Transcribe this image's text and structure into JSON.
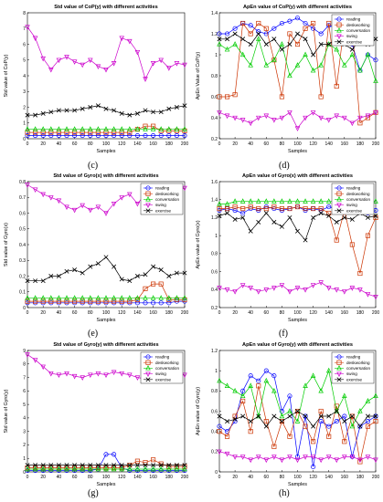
{
  "figure": {
    "panel_tags": [
      "(c)",
      "(d)",
      "(e)",
      "(f)",
      "(g)",
      "(h)"
    ]
  },
  "series_style": [
    {
      "name": "reading",
      "color": "#0000ff",
      "marker": "circle"
    },
    {
      "name": "deskworking",
      "color": "#cc3300",
      "marker": "square"
    },
    {
      "name": "conversation",
      "color": "#00cc00",
      "marker": "triangle-up"
    },
    {
      "name": "swing",
      "color": "#cc00cc",
      "marker": "triangle-down"
    },
    {
      "name": "exercise",
      "color": "#000000",
      "marker": "x"
    }
  ],
  "chart_data": [
    {
      "type": "line",
      "panel": "c",
      "title": "Std value of CoP(y) with different activities",
      "xlabel": "Samples",
      "ylabel": "Std value of CoP(y)",
      "xlim": [
        0,
        200
      ],
      "ylim": [
        0,
        8
      ],
      "xticks": [
        0,
        20,
        40,
        60,
        80,
        100,
        120,
        140,
        160,
        180,
        200
      ],
      "yticks": [
        0,
        1,
        2,
        3,
        4,
        5,
        6,
        7,
        8
      ],
      "legend": false,
      "x": [
        0,
        10,
        20,
        30,
        40,
        50,
        60,
        70,
        80,
        90,
        100,
        110,
        120,
        130,
        140,
        150,
        160,
        170,
        180,
        190,
        200
      ],
      "series": [
        {
          "name": "reading",
          "values": [
            0.2,
            0.2,
            0.2,
            0.2,
            0.2,
            0.2,
            0.2,
            0.2,
            0.2,
            0.2,
            0.2,
            0.2,
            0.2,
            0.2,
            0.2,
            0.2,
            0.2,
            0.2,
            0.2,
            0.2,
            0.2
          ]
        },
        {
          "name": "deskworking",
          "values": [
            0.4,
            0.4,
            0.4,
            0.4,
            0.4,
            0.4,
            0.4,
            0.4,
            0.4,
            0.4,
            0.4,
            0.4,
            0.4,
            0.4,
            0.6,
            0.8,
            0.8,
            0.5,
            0.5,
            0.5,
            0.5
          ]
        },
        {
          "name": "conversation",
          "values": [
            0.6,
            0.6,
            0.6,
            0.6,
            0.6,
            0.6,
            0.6,
            0.6,
            0.6,
            0.6,
            0.6,
            0.6,
            0.6,
            0.6,
            0.6,
            0.6,
            0.6,
            0.6,
            0.6,
            0.6,
            0.6
          ]
        },
        {
          "name": "swing",
          "values": [
            7.1,
            6.4,
            5.1,
            4.4,
            5.0,
            5.2,
            4.9,
            4.7,
            5.0,
            4.6,
            4.4,
            4.8,
            6.4,
            6.2,
            5.5,
            3.8,
            4.8,
            5.0,
            4.5,
            4.8,
            4.7
          ]
        },
        {
          "name": "exercise",
          "values": [
            1.5,
            1.5,
            1.6,
            1.7,
            1.8,
            1.8,
            1.8,
            1.9,
            2.0,
            2.1,
            1.9,
            1.8,
            1.6,
            1.5,
            1.6,
            1.8,
            1.7,
            1.7,
            1.9,
            2.0,
            2.1
          ]
        }
      ]
    },
    {
      "type": "line",
      "panel": "d",
      "title": "ApEn value of CoP(y) with different activities",
      "xlabel": "Samples",
      "ylabel": "ApEn Value of CoP(y)",
      "xlim": [
        0,
        200
      ],
      "ylim": [
        0.2,
        1.4
      ],
      "xticks": [
        0,
        20,
        40,
        60,
        80,
        100,
        120,
        140,
        160,
        180,
        200
      ],
      "yticks": [
        0.2,
        0.4,
        0.6,
        0.8,
        1,
        1.2,
        1.4
      ],
      "legend": true,
      "x": [
        0,
        10,
        20,
        30,
        40,
        50,
        60,
        70,
        80,
        90,
        100,
        110,
        120,
        130,
        140,
        150,
        160,
        170,
        180,
        190,
        200
      ],
      "series": [
        {
          "name": "reading",
          "values": [
            1.2,
            1.2,
            1.25,
            1.3,
            1.28,
            1.22,
            1.2,
            1.25,
            1.3,
            1.32,
            1.35,
            1.3,
            1.25,
            1.2,
            1.28,
            1.25,
            1.2,
            1.1,
            0.85,
            1.0,
            0.95
          ]
        },
        {
          "name": "deskworking",
          "values": [
            0.6,
            0.6,
            0.62,
            1.3,
            1.2,
            1.3,
            1.25,
            0.95,
            0.6,
            1.2,
            1.1,
            1.25,
            1.3,
            0.6,
            1.3,
            0.7,
            1.3,
            1.25,
            0.35,
            0.4,
            0.45
          ]
        },
        {
          "name": "conversation",
          "values": [
            1.1,
            1.05,
            1.1,
            1.0,
            0.9,
            1.15,
            0.9,
            0.95,
            1.1,
            0.8,
            0.9,
            1.0,
            0.85,
            0.9,
            1.1,
            1.05,
            0.9,
            1.0,
            0.85,
            1.0,
            0.75
          ]
        },
        {
          "name": "swing",
          "values": [
            0.45,
            0.42,
            0.4,
            0.38,
            0.35,
            0.4,
            0.42,
            0.38,
            0.4,
            0.45,
            0.3,
            0.4,
            0.45,
            0.4,
            0.38,
            0.42,
            0.4,
            0.35,
            0.4,
            0.42,
            0.45
          ]
        },
        {
          "name": "exercise",
          "values": [
            1.15,
            1.15,
            1.2,
            1.15,
            1.1,
            1.2,
            1.1,
            1.15,
            1.05,
            1.1,
            1.2,
            1.15,
            1.0,
            1.1,
            1.1,
            1.15,
            1.1,
            1.05,
            1.15,
            1.1,
            1.15
          ]
        }
      ]
    },
    {
      "type": "line",
      "panel": "e",
      "title": "Std value of Gyro(x) with different activities",
      "xlabel": "Samples",
      "ylabel": "Std value of Gyro(x)",
      "xlim": [
        0,
        200
      ],
      "ylim": [
        0,
        0.8
      ],
      "xticks": [
        0,
        20,
        40,
        60,
        80,
        100,
        120,
        140,
        160,
        180,
        200
      ],
      "yticks": [
        0,
        0.1,
        0.2,
        0.3,
        0.4,
        0.5,
        0.6,
        0.7,
        0.8
      ],
      "legend": true,
      "x": [
        0,
        10,
        20,
        30,
        40,
        50,
        60,
        70,
        80,
        90,
        100,
        110,
        120,
        130,
        140,
        150,
        160,
        170,
        180,
        190,
        200
      ],
      "series": [
        {
          "name": "reading",
          "values": [
            0.03,
            0.03,
            0.03,
            0.03,
            0.03,
            0.03,
            0.03,
            0.03,
            0.03,
            0.03,
            0.03,
            0.03,
            0.03,
            0.03,
            0.03,
            0.03,
            0.03,
            0.03,
            0.03,
            0.04,
            0.04
          ]
        },
        {
          "name": "deskworking",
          "values": [
            0.04,
            0.04,
            0.04,
            0.04,
            0.04,
            0.04,
            0.04,
            0.04,
            0.04,
            0.04,
            0.04,
            0.04,
            0.04,
            0.04,
            0.05,
            0.12,
            0.15,
            0.15,
            0.05,
            0.05,
            0.05
          ]
        },
        {
          "name": "conversation",
          "values": [
            0.06,
            0.06,
            0.06,
            0.06,
            0.06,
            0.06,
            0.06,
            0.06,
            0.06,
            0.06,
            0.06,
            0.06,
            0.06,
            0.06,
            0.06,
            0.06,
            0.06,
            0.06,
            0.06,
            0.06,
            0.06
          ]
        },
        {
          "name": "swing",
          "values": [
            0.78,
            0.75,
            0.72,
            0.7,
            0.68,
            0.64,
            0.62,
            0.65,
            0.62,
            0.64,
            0.6,
            0.66,
            0.7,
            0.72,
            0.66,
            0.72,
            0.74,
            0.68,
            0.72,
            0.74,
            0.76
          ]
        },
        {
          "name": "exercise",
          "values": [
            0.17,
            0.17,
            0.17,
            0.2,
            0.2,
            0.23,
            0.24,
            0.22,
            0.26,
            0.28,
            0.32,
            0.26,
            0.18,
            0.17,
            0.2,
            0.21,
            0.26,
            0.24,
            0.2,
            0.22,
            0.22
          ]
        }
      ]
    },
    {
      "type": "line",
      "panel": "f",
      "title": "ApEn value of Gyro(x) with different activities",
      "xlabel": "Samples",
      "ylabel": "ApEn value of Gyro(x)",
      "xlim": [
        0,
        200
      ],
      "ylim": [
        0.2,
        1.6
      ],
      "xticks": [
        0,
        20,
        40,
        60,
        80,
        100,
        120,
        140,
        160,
        180,
        200
      ],
      "yticks": [
        0.2,
        0.4,
        0.6,
        0.8,
        1,
        1.2,
        1.4,
        1.6
      ],
      "legend": true,
      "x": [
        0,
        10,
        20,
        30,
        40,
        50,
        60,
        70,
        80,
        90,
        100,
        110,
        120,
        130,
        140,
        150,
        160,
        170,
        180,
        190,
        200
      ],
      "series": [
        {
          "name": "reading",
          "values": [
            1.28,
            1.3,
            1.28,
            1.25,
            1.3,
            1.28,
            1.32,
            1.3,
            1.28,
            1.3,
            1.32,
            1.28,
            1.3,
            1.28,
            1.32,
            1.3,
            1.28,
            1.3,
            1.28,
            1.25,
            1.28
          ]
        },
        {
          "name": "deskworking",
          "values": [
            1.3,
            1.3,
            1.32,
            1.3,
            1.32,
            1.3,
            1.3,
            1.32,
            1.3,
            1.3,
            1.32,
            1.3,
            1.3,
            1.3,
            1.25,
            0.95,
            1.28,
            0.9,
            0.58,
            1.0,
            1.2
          ]
        },
        {
          "name": "conversation",
          "values": [
            1.35,
            1.35,
            1.38,
            1.38,
            1.38,
            1.38,
            1.38,
            1.38,
            1.38,
            1.38,
            1.38,
            1.38,
            1.38,
            1.38,
            1.38,
            1.38,
            1.38,
            1.38,
            1.38,
            1.38,
            1.38
          ]
        },
        {
          "name": "swing",
          "values": [
            0.42,
            0.4,
            0.38,
            0.45,
            0.42,
            0.38,
            0.4,
            0.42,
            0.45,
            0.38,
            0.42,
            0.4,
            0.45,
            0.48,
            0.42,
            0.4,
            0.38,
            0.42,
            0.4,
            0.35,
            0.32
          ]
        },
        {
          "name": "exercise",
          "values": [
            1.22,
            1.25,
            1.18,
            1.2,
            1.05,
            1.15,
            1.25,
            1.15,
            1.1,
            1.2,
            1.05,
            0.95,
            1.2,
            1.25,
            1.22,
            1.15,
            1.2,
            1.18,
            1.25,
            1.2,
            1.22
          ]
        }
      ]
    },
    {
      "type": "line",
      "panel": "g",
      "title": "Std value of Gyro(y) with different activities",
      "xlabel": "Samples",
      "ylabel": "Std value of Gyro(y)",
      "xlim": [
        0,
        200
      ],
      "ylim": [
        0,
        9
      ],
      "xticks": [
        0,
        20,
        40,
        60,
        80,
        100,
        120,
        140,
        160,
        180,
        200
      ],
      "yticks": [
        0,
        1,
        2,
        3,
        4,
        5,
        6,
        7,
        8,
        9
      ],
      "legend": true,
      "x": [
        0,
        10,
        20,
        30,
        40,
        50,
        60,
        70,
        80,
        90,
        100,
        110,
        120,
        130,
        140,
        150,
        160,
        170,
        180,
        190,
        200
      ],
      "series": [
        {
          "name": "reading",
          "values": [
            0.1,
            0.1,
            0.1,
            0.1,
            0.1,
            0.1,
            0.1,
            0.1,
            0.1,
            0.2,
            1.3,
            1.3,
            0.3,
            0.1,
            0.1,
            0.1,
            0.1,
            0.1,
            0.1,
            0.1,
            0.1
          ]
        },
        {
          "name": "deskworking",
          "values": [
            0.3,
            0.3,
            0.3,
            0.3,
            0.3,
            0.3,
            0.3,
            0.3,
            0.3,
            0.3,
            0.3,
            0.3,
            0.3,
            0.5,
            0.8,
            0.7,
            0.9,
            0.6,
            0.4,
            0.4,
            0.4
          ]
        },
        {
          "name": "conversation",
          "values": [
            0.2,
            0.2,
            0.2,
            0.2,
            0.2,
            0.2,
            0.2,
            0.2,
            0.2,
            0.2,
            0.2,
            0.2,
            0.2,
            0.2,
            0.2,
            0.2,
            0.2,
            0.2,
            0.2,
            0.2,
            0.2
          ]
        },
        {
          "name": "swing",
          "values": [
            8.7,
            8.3,
            7.8,
            7.3,
            7.2,
            7.3,
            7.1,
            7.0,
            7.2,
            7.3,
            7.2,
            7.4,
            7.3,
            7.2,
            7.0,
            6.9,
            7.1,
            7.0,
            7.2,
            7.3,
            7.2
          ]
        },
        {
          "name": "exercise",
          "values": [
            0.5,
            0.5,
            0.5,
            0.5,
            0.5,
            0.5,
            0.5,
            0.5,
            0.5,
            0.5,
            0.5,
            0.5,
            0.5,
            0.5,
            0.5,
            0.5,
            0.5,
            0.5,
            0.5,
            0.5,
            0.5
          ]
        }
      ]
    },
    {
      "type": "line",
      "panel": "h",
      "title": "ApEn value of Gyro(y) with different activities",
      "xlabel": "Samples",
      "ylabel": "ApEn value of Gyro(y)",
      "xlim": [
        0,
        200
      ],
      "ylim": [
        0,
        1.2
      ],
      "xticks": [
        0,
        20,
        40,
        60,
        80,
        100,
        120,
        140,
        160,
        180,
        200
      ],
      "yticks": [
        0,
        0.2,
        0.4,
        0.6,
        0.8,
        1,
        1.2
      ],
      "legend": true,
      "x": [
        0,
        10,
        20,
        30,
        40,
        50,
        60,
        70,
        80,
        90,
        100,
        110,
        120,
        130,
        140,
        150,
        160,
        170,
        180,
        190,
        200
      ],
      "series": [
        {
          "name": "reading",
          "values": [
            0.45,
            0.4,
            0.5,
            0.8,
            0.95,
            0.9,
            1.0,
            0.95,
            0.6,
            0.75,
            0.15,
            0.55,
            0.05,
            0.5,
            0.45,
            0.5,
            0.55,
            0.15,
            0.45,
            0.5,
            0.55
          ]
        },
        {
          "name": "deskworking",
          "values": [
            0.4,
            0.35,
            0.55,
            0.7,
            0.4,
            0.85,
            0.5,
            0.25,
            0.5,
            0.35,
            0.6,
            0.45,
            0.3,
            0.6,
            0.35,
            0.65,
            0.3,
            0.55,
            0.1,
            0.45,
            0.5
          ]
        },
        {
          "name": "conversation",
          "values": [
            0.9,
            0.85,
            0.8,
            0.75,
            0.85,
            0.55,
            0.9,
            0.8,
            0.55,
            0.6,
            0.5,
            0.85,
            0.95,
            0.8,
            1.0,
            0.6,
            0.75,
            0.45,
            0.6,
            0.7,
            0.75
          ]
        },
        {
          "name": "swing",
          "values": [
            0.2,
            0.18,
            0.15,
            0.15,
            0.12,
            0.15,
            0.12,
            0.15,
            0.12,
            0.15,
            0.12,
            0.15,
            0.15,
            0.12,
            0.15,
            0.12,
            0.15,
            0.15,
            0.12,
            0.15,
            0.12
          ]
        },
        {
          "name": "exercise",
          "values": [
            0.55,
            0.5,
            0.52,
            0.55,
            0.5,
            0.55,
            0.45,
            0.55,
            0.5,
            0.55,
            0.6,
            0.55,
            0.45,
            0.55,
            0.55,
            0.6,
            0.5,
            0.55,
            0.45,
            0.55,
            0.55
          ]
        }
      ]
    }
  ]
}
